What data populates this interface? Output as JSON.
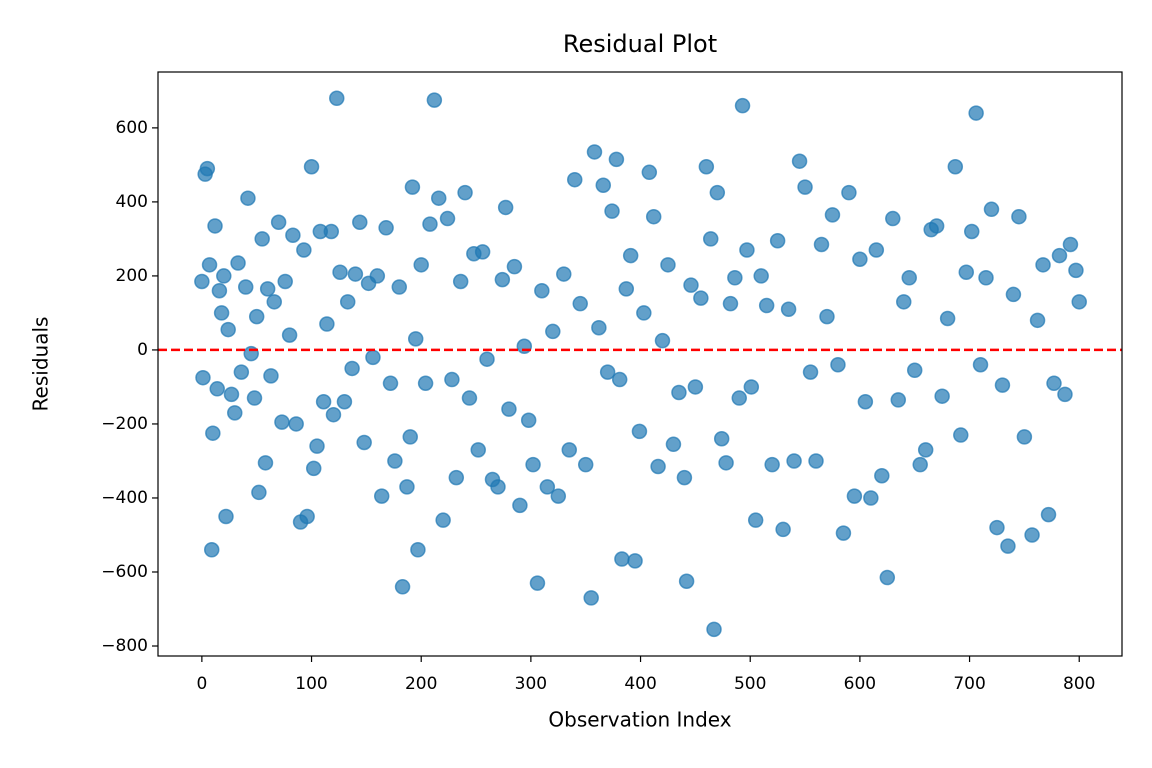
{
  "chart_data": {
    "type": "scatter",
    "title": "Residual Plot",
    "xlabel": "Observation Index",
    "ylabel": "Residuals",
    "xlim": [
      -40,
      839
    ],
    "ylim": [
      -827,
      751
    ],
    "xticks": [
      0,
      100,
      200,
      300,
      400,
      500,
      600,
      700,
      800
    ],
    "yticks": [
      {
        "value": -800,
        "label": "−800"
      },
      {
        "value": -600,
        "label": "−600"
      },
      {
        "value": -400,
        "label": "−400"
      },
      {
        "value": -200,
        "label": "−200"
      },
      0,
      200,
      400,
      600
    ],
    "hline": {
      "value": 0,
      "color": "red"
    },
    "series": [
      {
        "color": "#1f77b4",
        "x": [
          0,
          1,
          3,
          5,
          7,
          9,
          10,
          12,
          14,
          16,
          18,
          20,
          22,
          24,
          27,
          30,
          33,
          36,
          40,
          42,
          45,
          48,
          50,
          52,
          55,
          58,
          60,
          63,
          66,
          70,
          73,
          76,
          80,
          83,
          86,
          90,
          93,
          96,
          100,
          102,
          105,
          108,
          111,
          114,
          118,
          120,
          123,
          126,
          130,
          133,
          137,
          140,
          144,
          148,
          152,
          156,
          160,
          164,
          168,
          172,
          176,
          180,
          183,
          187,
          190,
          192,
          195,
          197,
          200,
          204,
          208,
          212,
          216,
          220,
          224,
          228,
          232,
          236,
          240,
          244,
          248,
          252,
          256,
          260,
          265,
          270,
          274,
          277,
          280,
          285,
          290,
          294,
          298,
          302,
          306,
          310,
          315,
          320,
          325,
          330,
          335,
          340,
          345,
          350,
          355,
          358,
          362,
          366,
          370,
          374,
          378,
          381,
          383,
          387,
          391,
          395,
          399,
          403,
          408,
          412,
          416,
          420,
          425,
          430,
          435,
          440,
          442,
          446,
          450,
          455,
          460,
          464,
          467,
          470,
          474,
          478,
          482,
          486,
          490,
          493,
          497,
          501,
          505,
          510,
          515,
          520,
          525,
          530,
          535,
          540,
          545,
          550,
          555,
          560,
          565,
          570,
          575,
          580,
          585,
          590,
          595,
          600,
          605,
          610,
          615,
          620,
          625,
          630,
          635,
          640,
          645,
          650,
          655,
          660,
          665,
          670,
          675,
          680,
          687,
          692,
          697,
          702,
          706,
          710,
          715,
          720,
          725,
          730,
          735,
          740,
          745,
          750,
          757,
          762,
          767,
          772,
          777,
          782,
          787,
          792,
          797,
          800
        ],
        "values": [
          185,
          -75,
          475,
          490,
          230,
          -540,
          -225,
          335,
          -105,
          160,
          100,
          200,
          -450,
          55,
          -120,
          -170,
          235,
          -60,
          170,
          410,
          -10,
          -130,
          90,
          -385,
          300,
          -305,
          165,
          -70,
          130,
          345,
          -195,
          185,
          40,
          310,
          -200,
          -465,
          270,
          -450,
          495,
          -320,
          -260,
          320,
          -140,
          70,
          320,
          -175,
          680,
          210,
          -140,
          130,
          -50,
          205,
          345,
          -250,
          180,
          -20,
          200,
          -395,
          330,
          -90,
          -300,
          170,
          -640,
          -370,
          -235,
          440,
          30,
          -540,
          230,
          -90,
          340,
          675,
          410,
          -460,
          355,
          -80,
          -345,
          185,
          425,
          -130,
          260,
          -270,
          265,
          -25,
          -350,
          -370,
          190,
          385,
          -160,
          225,
          -420,
          10,
          -190,
          -310,
          -630,
          160,
          -370,
          50,
          -395,
          205,
          -270,
          460,
          125,
          -310,
          -670,
          535,
          60,
          445,
          -60,
          375,
          515,
          -80,
          -565,
          165,
          255,
          -570,
          -220,
          100,
          480,
          360,
          -315,
          25,
          230,
          -255,
          -115,
          -345,
          -625,
          175,
          -100,
          140,
          495,
          300,
          -755,
          425,
          -240,
          -305,
          125,
          195,
          -130,
          660,
          270,
          -100,
          -460,
          200,
          120,
          -310,
          295,
          -485,
          110,
          -300,
          510,
          440,
          -60,
          -300,
          285,
          90,
          365,
          -40,
          -495,
          425,
          -395,
          245,
          -140,
          -400,
          270,
          -340,
          -615,
          355,
          -135,
          130,
          195,
          -55,
          -310,
          -270,
          325,
          335,
          -125,
          85,
          495,
          -230,
          210,
          320,
          640,
          -40,
          195,
          380,
          -480,
          -95,
          -530,
          150,
          360,
          -235,
          -500,
          80,
          230,
          -445,
          -90,
          255,
          -120,
          285,
          215,
          130
        ]
      }
    ]
  }
}
